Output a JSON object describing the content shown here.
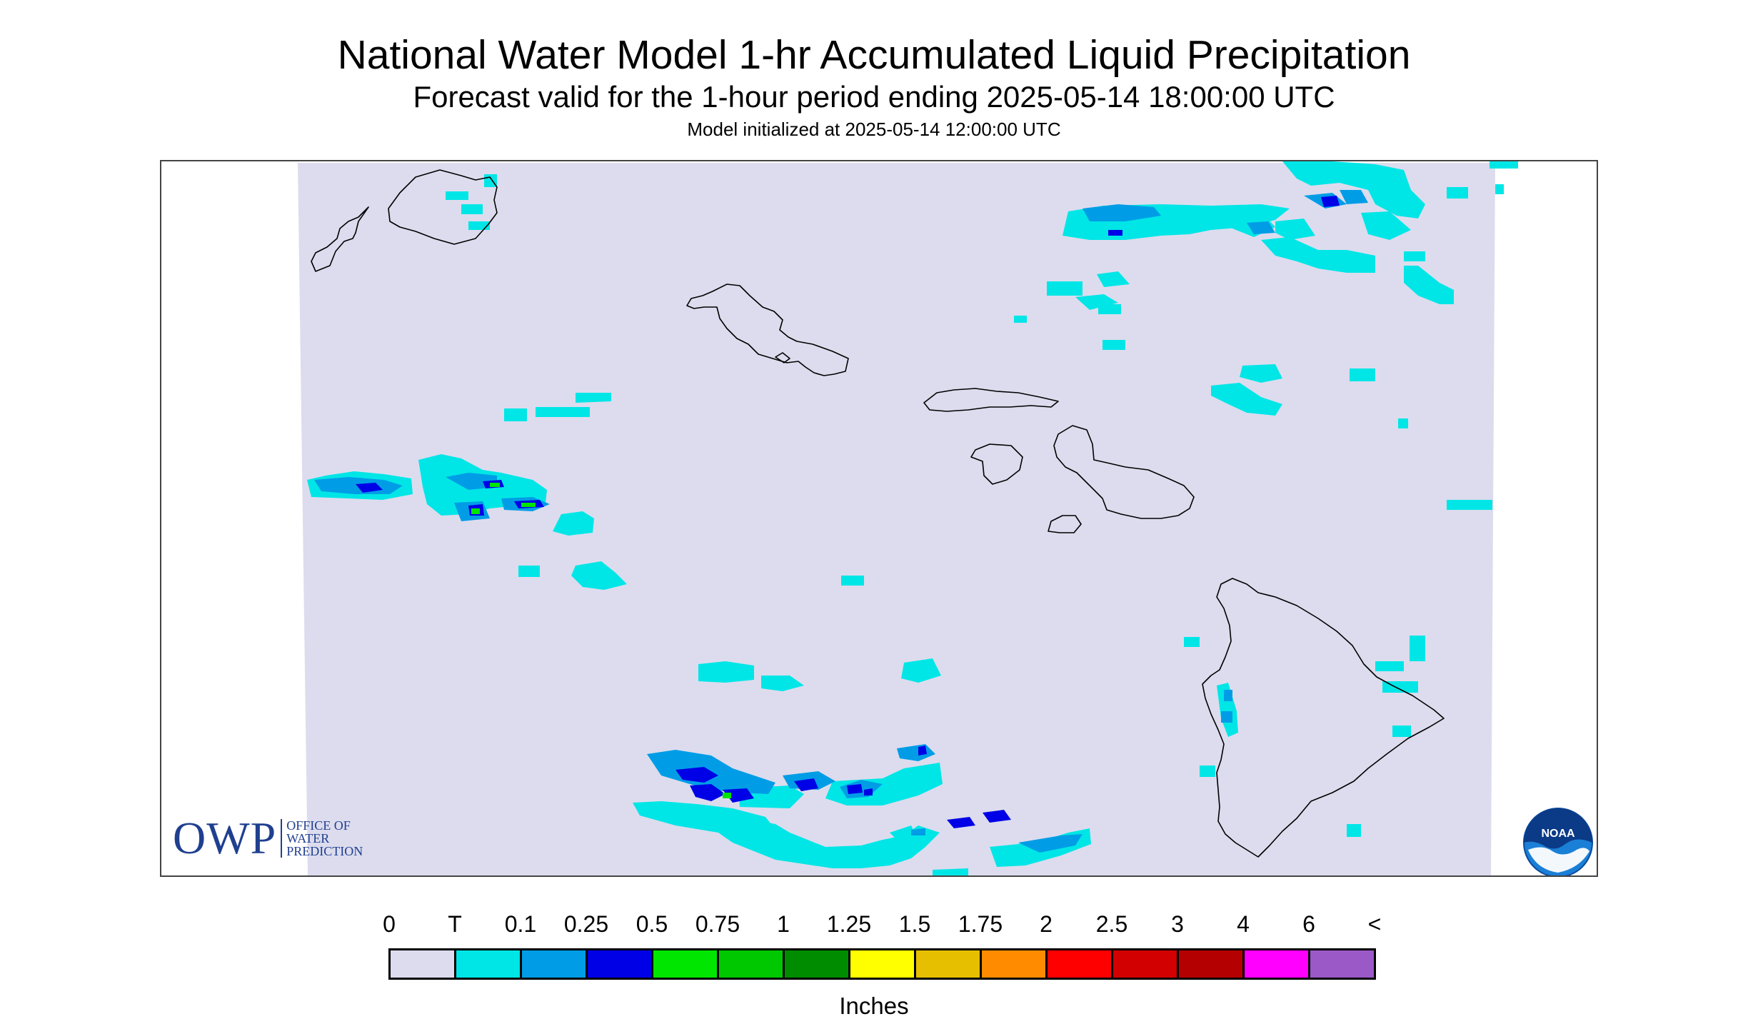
{
  "header": {
    "title": "National Water Model 1-hr Accumulated Liquid Precipitation",
    "subtitle": "Forecast valid for the 1-hour period ending 2025-05-14 18:00:00 UTC",
    "init": "Model initialized at 2025-05-14 12:00:00 UTC"
  },
  "logos": {
    "owp_big": "OWP",
    "owp_line1": "OFFICE OF",
    "owp_line2": "WATER",
    "owp_line3": "PREDICTION",
    "noaa": "NOAA"
  },
  "legend": {
    "labels": [
      "0",
      "T",
      "0.1",
      "0.25",
      "0.5",
      "0.75",
      "1",
      "1.25",
      "1.5",
      "1.75",
      "2",
      "2.5",
      "3",
      "4",
      "6",
      "<"
    ],
    "colors": [
      "#dcdcee",
      "#00e6e6",
      "#009de6",
      "#0000e6",
      "#00e600",
      "#00c800",
      "#008c00",
      "#ffff00",
      "#e6c000",
      "#ff8c00",
      "#ff0000",
      "#d20000",
      "#b40000",
      "#ff00ff",
      "#9b59c8"
    ],
    "units": "Inches"
  },
  "colors": {
    "background": "#dcdcee",
    "trace": "#00e6e6",
    "light": "#009de6",
    "moderate": "#0000e6",
    "heavy": "#00e600",
    "coastline": "#000000",
    "owp_brand": "#1f3f8f",
    "noaa_blue": "#1a7fd6"
  }
}
